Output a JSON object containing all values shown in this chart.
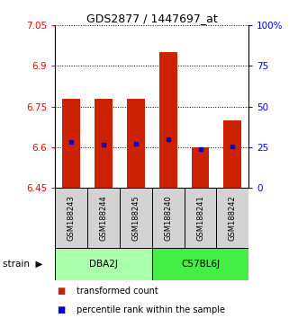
{
  "title": "GDS2877 / 1447697_at",
  "samples": [
    "GSM188243",
    "GSM188244",
    "GSM188245",
    "GSM188240",
    "GSM188241",
    "GSM188242"
  ],
  "groups": [
    "DBA2J",
    "DBA2J",
    "DBA2J",
    "C57BL6J",
    "C57BL6J",
    "C57BL6J"
  ],
  "group_names": [
    "DBA2J",
    "C57BL6J"
  ],
  "group_colors_light": [
    "#CCFFCC",
    "#44EE44"
  ],
  "bar_bottom": 6.45,
  "bar_tops": [
    6.78,
    6.78,
    6.78,
    6.95,
    6.6,
    6.7
  ],
  "blue_dots": [
    6.62,
    6.61,
    6.612,
    6.63,
    6.593,
    6.602
  ],
  "ylim": [
    6.45,
    7.05
  ],
  "yticks_left": [
    6.45,
    6.6,
    6.75,
    6.9,
    7.05
  ],
  "yticks_right_vals": [
    0,
    25,
    50,
    75,
    100
  ],
  "yticks_right_positions": [
    6.45,
    6.6,
    6.75,
    6.9,
    7.05
  ],
  "bar_color": "#CC2200",
  "dot_color": "#0000CC",
  "bar_width": 0.55,
  "legend_labels": [
    "transformed count",
    "percentile rank within the sample"
  ],
  "legend_colors": [
    "#CC2200",
    "#0000CC"
  ],
  "group_label": "strain"
}
